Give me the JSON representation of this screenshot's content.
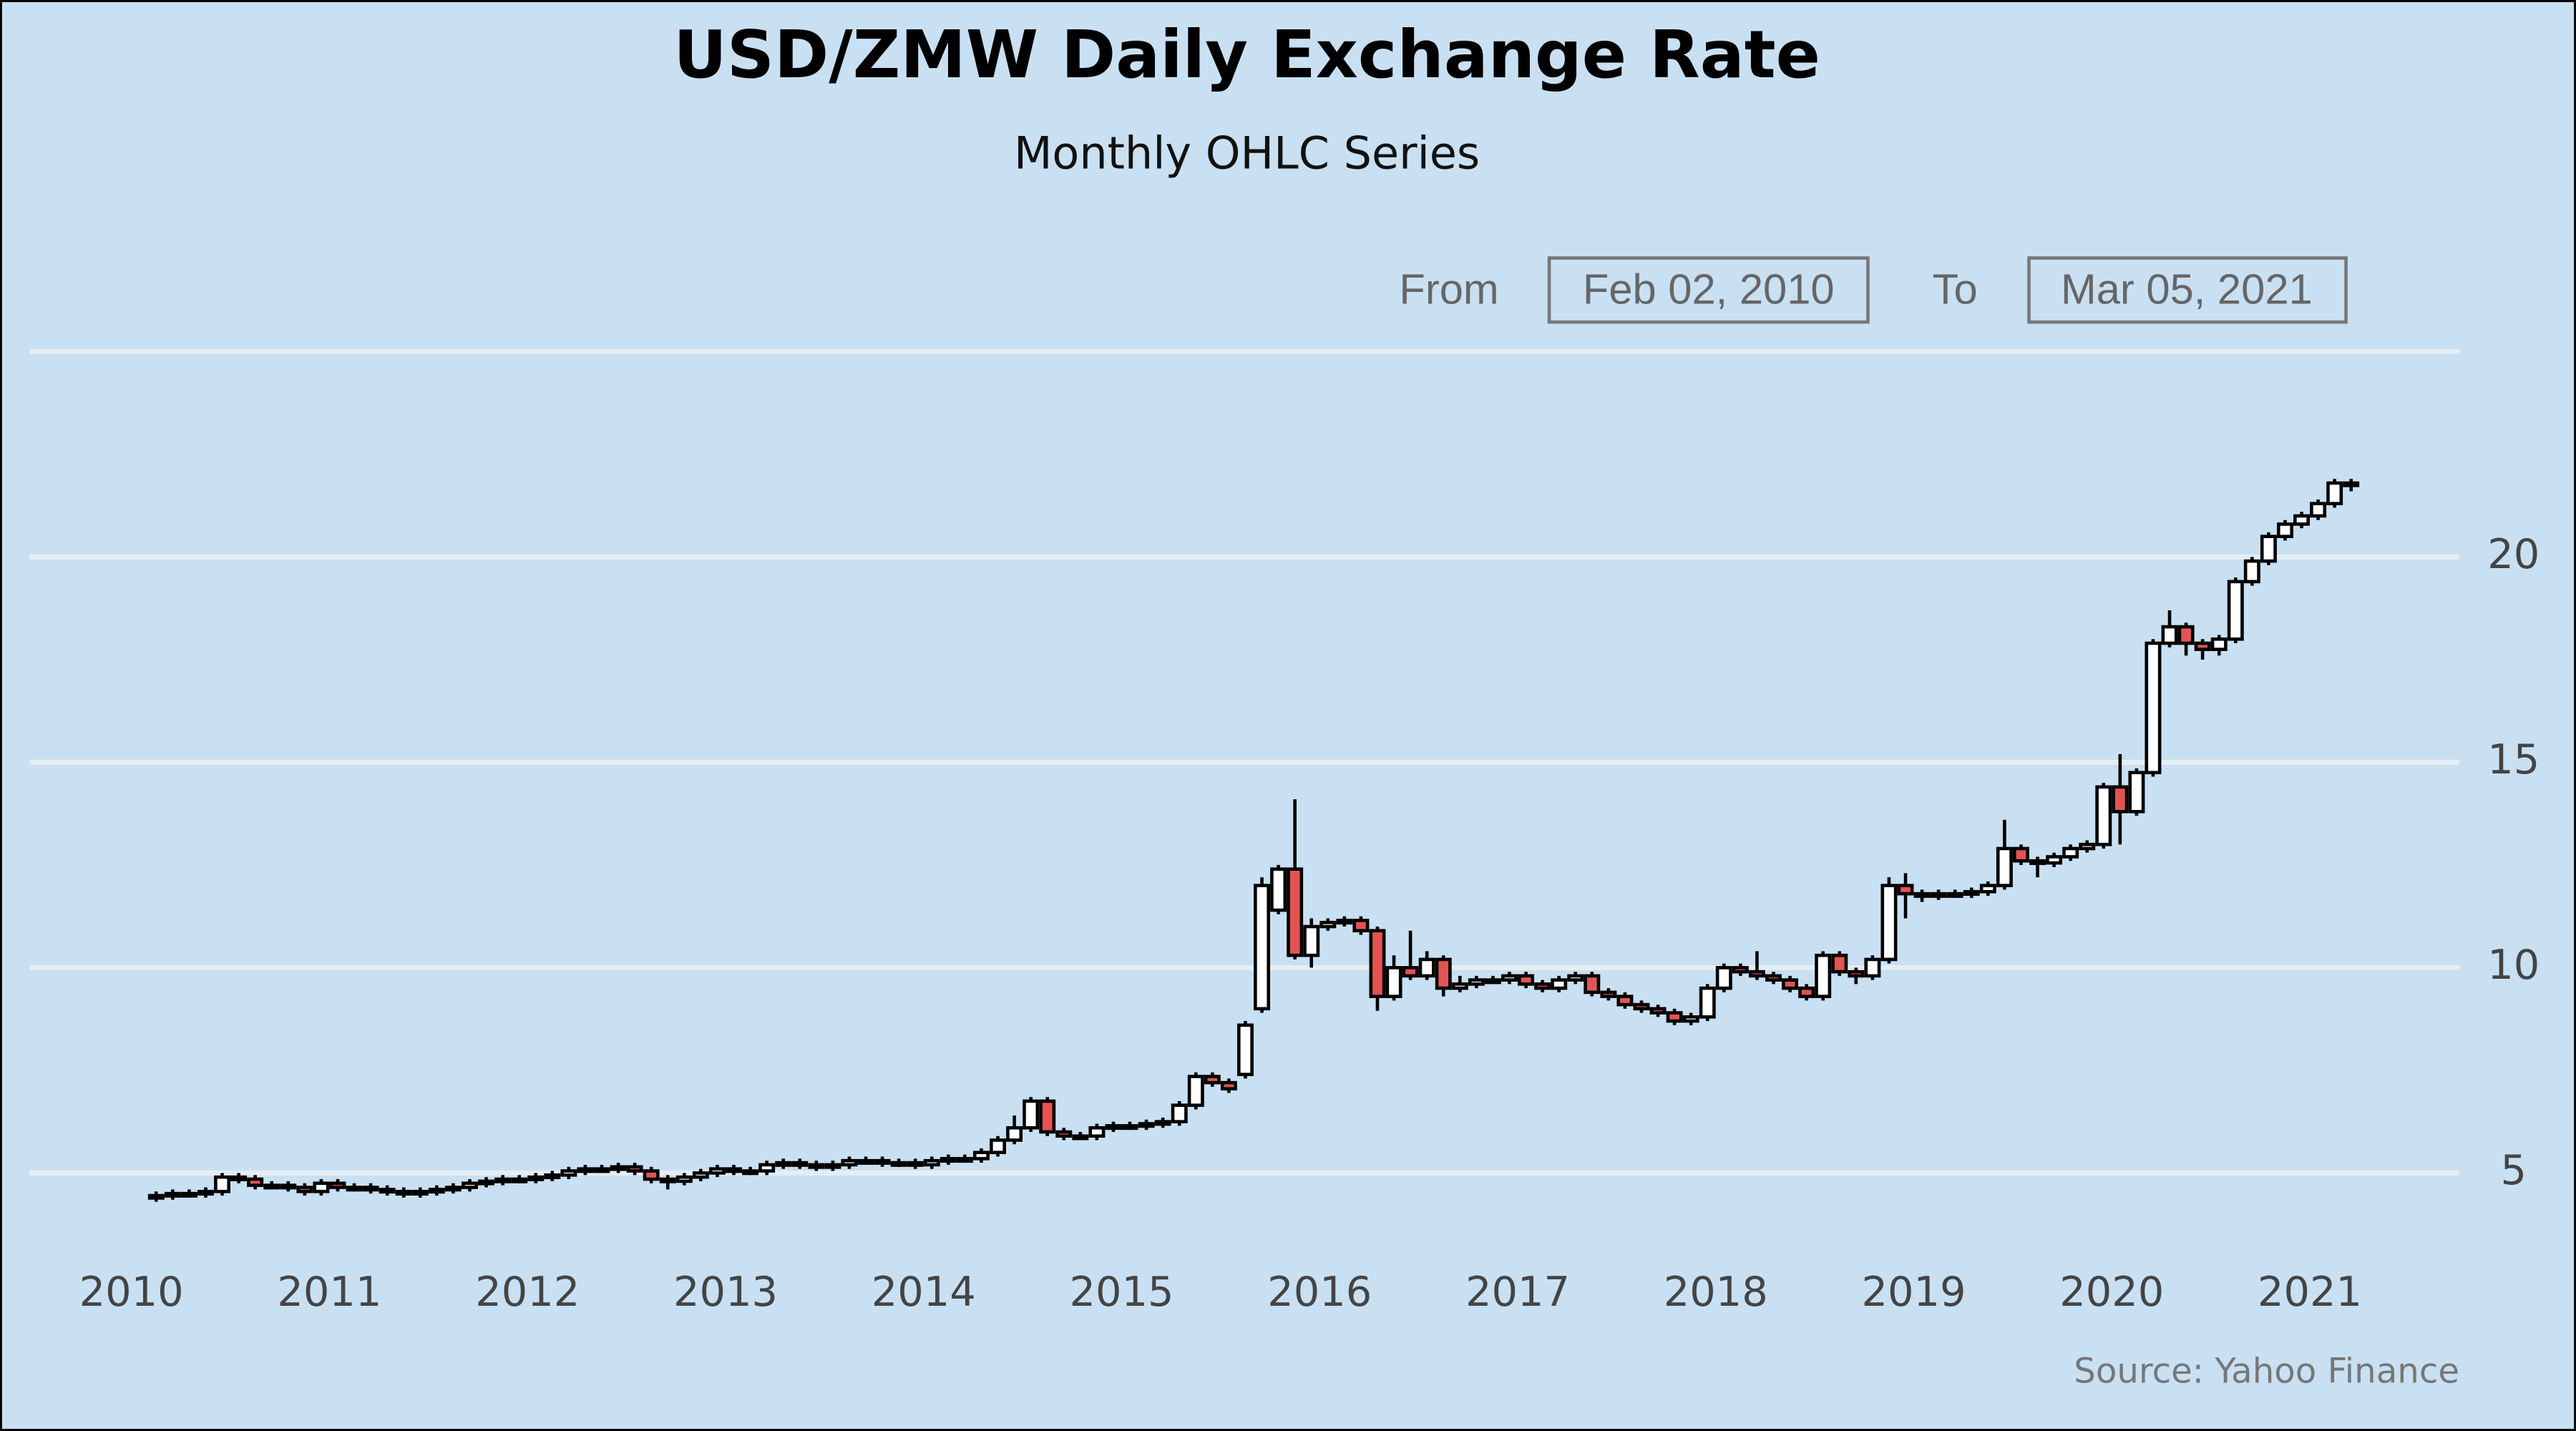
{
  "chart_data": {
    "type": "candlestick",
    "title": "USD/ZMW Daily Exchange Rate",
    "subtitle": "Monthly OHLC Series",
    "range_selector": {
      "from_label": "From",
      "from": "Feb 02, 2010",
      "to_label": "To",
      "to": "Mar 05, 2021"
    },
    "source": "Source: Yahoo Finance",
    "x": [
      "2010-02",
      "2010-03",
      "2010-04",
      "2010-05",
      "2010-06",
      "2010-07",
      "2010-08",
      "2010-09",
      "2010-10",
      "2010-11",
      "2010-12",
      "2011-01",
      "2011-02",
      "2011-03",
      "2011-04",
      "2011-05",
      "2011-06",
      "2011-07",
      "2011-08",
      "2011-09",
      "2011-10",
      "2011-11",
      "2011-12",
      "2012-01",
      "2012-02",
      "2012-03",
      "2012-04",
      "2012-05",
      "2012-06",
      "2012-07",
      "2012-08",
      "2012-09",
      "2012-10",
      "2012-11",
      "2012-12",
      "2013-01",
      "2013-02",
      "2013-03",
      "2013-04",
      "2013-05",
      "2013-06",
      "2013-07",
      "2013-08",
      "2013-09",
      "2013-10",
      "2013-11",
      "2013-12",
      "2014-01",
      "2014-02",
      "2014-03",
      "2014-04",
      "2014-05",
      "2014-06",
      "2014-07",
      "2014-08",
      "2014-09",
      "2014-10",
      "2014-11",
      "2014-12",
      "2015-01",
      "2015-02",
      "2015-03",
      "2015-04",
      "2015-05",
      "2015-06",
      "2015-07",
      "2015-08",
      "2015-09",
      "2015-10",
      "2015-11",
      "2015-12",
      "2016-01",
      "2016-02",
      "2016-03",
      "2016-04",
      "2016-05",
      "2016-06",
      "2016-07",
      "2016-08",
      "2016-09",
      "2016-10",
      "2016-11",
      "2016-12",
      "2017-01",
      "2017-02",
      "2017-03",
      "2017-04",
      "2017-05",
      "2017-06",
      "2017-07",
      "2017-08",
      "2017-09",
      "2017-10",
      "2017-11",
      "2017-12",
      "2018-01",
      "2018-02",
      "2018-03",
      "2018-04",
      "2018-05",
      "2018-06",
      "2018-07",
      "2018-08",
      "2018-09",
      "2018-10",
      "2018-11",
      "2018-12",
      "2019-01",
      "2019-02",
      "2019-03",
      "2019-04",
      "2019-05",
      "2019-06",
      "2019-07",
      "2019-08",
      "2019-09",
      "2019-10",
      "2019-11",
      "2019-12",
      "2020-01",
      "2020-02",
      "2020-03",
      "2020-04",
      "2020-05",
      "2020-06",
      "2020-07",
      "2020-08",
      "2020-09",
      "2020-10",
      "2020-11",
      "2020-12",
      "2021-01",
      "2021-02",
      "2021-03"
    ],
    "open": [
      4.4,
      4.45,
      4.5,
      4.5,
      4.55,
      4.9,
      4.85,
      4.7,
      4.7,
      4.65,
      4.55,
      4.75,
      4.65,
      4.65,
      4.6,
      4.55,
      4.5,
      4.55,
      4.6,
      4.65,
      4.75,
      4.8,
      4.85,
      4.85,
      4.9,
      4.95,
      5.05,
      5.1,
      5.1,
      5.15,
      5.05,
      4.85,
      4.8,
      4.9,
      5.0,
      5.1,
      5.05,
      5.05,
      5.2,
      5.25,
      5.2,
      5.15,
      5.2,
      5.3,
      5.3,
      5.25,
      5.25,
      5.2,
      5.3,
      5.35,
      5.35,
      5.5,
      5.8,
      6.1,
      6.75,
      6.0,
      5.9,
      5.9,
      6.1,
      6.15,
      6.15,
      6.2,
      6.25,
      6.65,
      7.35,
      7.2,
      7.4,
      9.0,
      11.4,
      12.4,
      10.3,
      11.0,
      11.1,
      11.15,
      10.9,
      9.3,
      10.0,
      9.8,
      10.2,
      9.5,
      9.6,
      9.7,
      9.7,
      9.8,
      9.6,
      9.5,
      9.7,
      9.8,
      9.4,
      9.3,
      9.1,
      9.0,
      8.9,
      8.7,
      8.8,
      9.5,
      10.0,
      9.9,
      9.8,
      9.7,
      9.5,
      9.3,
      10.3,
      9.9,
      9.8,
      10.2,
      12.0,
      11.8,
      11.75,
      11.8,
      11.8,
      11.85,
      12.0,
      12.9,
      12.6,
      12.55,
      12.7,
      12.9,
      13.0,
      14.4,
      13.8,
      14.75,
      17.9,
      18.3,
      17.9,
      17.75,
      18.0,
      19.4,
      19.9,
      20.5,
      20.8,
      21.0,
      21.3,
      21.8
    ],
    "high": [
      4.55,
      4.6,
      4.6,
      4.65,
      5.0,
      5.0,
      4.95,
      4.8,
      4.8,
      4.75,
      4.85,
      4.85,
      4.75,
      4.75,
      4.7,
      4.65,
      4.65,
      4.7,
      4.75,
      4.85,
      4.9,
      4.95,
      4.95,
      5.0,
      5.05,
      5.15,
      5.2,
      5.2,
      5.25,
      5.25,
      5.15,
      4.95,
      5.0,
      5.1,
      5.2,
      5.2,
      5.15,
      5.3,
      5.35,
      5.35,
      5.3,
      5.3,
      5.4,
      5.4,
      5.4,
      5.35,
      5.35,
      5.4,
      5.45,
      5.45,
      5.6,
      5.9,
      6.4,
      6.85,
      6.85,
      6.1,
      6.0,
      6.2,
      6.25,
      6.25,
      6.3,
      6.35,
      6.75,
      7.45,
      7.45,
      7.3,
      8.7,
      12.2,
      12.5,
      14.1,
      11.2,
      11.2,
      11.25,
      11.25,
      11.0,
      10.3,
      10.9,
      10.4,
      10.3,
      9.8,
      9.8,
      9.8,
      9.9,
      9.9,
      9.7,
      9.8,
      9.9,
      9.9,
      9.5,
      9.4,
      9.2,
      9.1,
      9.0,
      8.9,
      9.6,
      10.1,
      10.1,
      10.4,
      9.9,
      9.8,
      9.6,
      10.4,
      10.4,
      10.0,
      10.3,
      12.2,
      12.3,
      11.9,
      11.9,
      11.9,
      11.95,
      12.1,
      13.6,
      13.0,
      12.7,
      12.8,
      13.0,
      13.1,
      14.5,
      15.2,
      14.85,
      18.0,
      18.7,
      18.4,
      18.0,
      18.1,
      19.5,
      20.0,
      20.6,
      20.9,
      21.1,
      21.4,
      21.9,
      21.9
    ],
    "low": [
      4.3,
      4.35,
      4.4,
      4.4,
      4.45,
      4.75,
      4.6,
      4.6,
      4.55,
      4.45,
      4.45,
      4.55,
      4.55,
      4.5,
      4.45,
      4.4,
      4.4,
      4.45,
      4.5,
      4.55,
      4.65,
      4.7,
      4.75,
      4.75,
      4.8,
      4.85,
      4.95,
      5.0,
      5.0,
      4.95,
      4.75,
      4.6,
      4.7,
      4.8,
      4.9,
      4.95,
      4.95,
      4.95,
      5.1,
      5.1,
      5.05,
      5.05,
      5.1,
      5.2,
      5.15,
      5.15,
      5.1,
      5.1,
      5.2,
      5.25,
      5.25,
      5.4,
      5.7,
      6.0,
      5.9,
      5.8,
      5.8,
      5.8,
      6.0,
      6.05,
      6.05,
      6.1,
      6.15,
      6.55,
      7.1,
      6.95,
      7.3,
      8.9,
      11.3,
      10.2,
      10.0,
      10.9,
      11.0,
      10.8,
      8.95,
      9.2,
      9.7,
      9.7,
      9.3,
      9.4,
      9.5,
      9.6,
      9.6,
      9.5,
      9.4,
      9.4,
      9.6,
      9.3,
      9.2,
      9.0,
      8.9,
      8.8,
      8.6,
      8.6,
      8.7,
      9.4,
      9.8,
      9.7,
      9.6,
      9.4,
      9.2,
      9.2,
      9.8,
      9.6,
      9.7,
      10.1,
      11.2,
      11.6,
      11.65,
      11.7,
      11.7,
      11.75,
      11.9,
      12.5,
      12.2,
      12.45,
      12.6,
      12.8,
      12.9,
      13.0,
      13.7,
      14.65,
      17.8,
      17.6,
      17.5,
      17.6,
      17.9,
      19.3,
      19.8,
      20.4,
      20.7,
      20.9,
      21.2,
      21.6
    ],
    "close": [
      4.45,
      4.5,
      4.5,
      4.55,
      4.9,
      4.85,
      4.7,
      4.7,
      4.65,
      4.55,
      4.75,
      4.65,
      4.65,
      4.6,
      4.55,
      4.5,
      4.55,
      4.6,
      4.65,
      4.75,
      4.8,
      4.85,
      4.85,
      4.9,
      4.95,
      5.05,
      5.1,
      5.1,
      5.15,
      5.05,
      4.85,
      4.8,
      4.9,
      5.0,
      5.1,
      5.05,
      5.05,
      5.2,
      5.25,
      5.2,
      5.15,
      5.2,
      5.3,
      5.3,
      5.25,
      5.25,
      5.2,
      5.3,
      5.35,
      5.35,
      5.5,
      5.8,
      6.1,
      6.75,
      6.0,
      5.9,
      5.9,
      6.1,
      6.15,
      6.15,
      6.2,
      6.25,
      6.65,
      7.35,
      7.2,
      7.05,
      8.6,
      12.0,
      12.4,
      10.3,
      11.0,
      11.1,
      11.15,
      10.9,
      9.3,
      10.0,
      9.8,
      10.2,
      9.5,
      9.6,
      9.7,
      9.7,
      9.8,
      9.6,
      9.5,
      9.7,
      9.8,
      9.4,
      9.3,
      9.1,
      9.0,
      8.9,
      8.7,
      8.8,
      9.5,
      10.0,
      9.9,
      9.8,
      9.7,
      9.5,
      9.3,
      10.3,
      9.9,
      9.8,
      10.2,
      12.0,
      11.8,
      11.75,
      11.8,
      11.8,
      11.85,
      12.0,
      12.9,
      12.6,
      12.55,
      12.7,
      12.9,
      13.0,
      14.4,
      13.8,
      14.75,
      17.9,
      18.3,
      17.9,
      17.75,
      18.0,
      19.4,
      19.9,
      20.5,
      20.8,
      21.0,
      21.3,
      21.8,
      21.75
    ],
    "up_color": "#ffffff",
    "down_color": "#e35353",
    "ylim": [
      3,
      25
    ],
    "yticks": [
      5,
      10,
      15,
      20
    ],
    "xticks": [
      2010,
      2011,
      2012,
      2013,
      2014,
      2015,
      2016,
      2017,
      2018,
      2019,
      2020,
      2021
    ],
    "grid": true
  }
}
